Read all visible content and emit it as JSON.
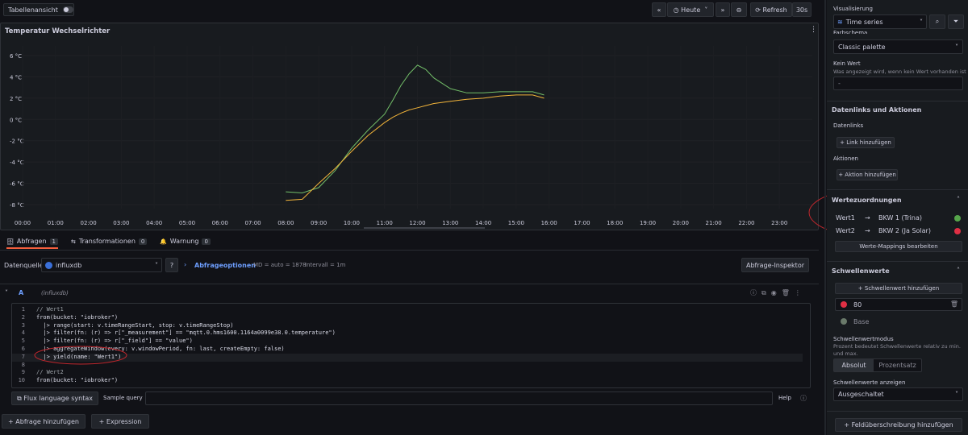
{
  "toolbar": {
    "table_view": "Tabellenansicht",
    "time_range": "Heute",
    "refresh": "Refresh",
    "refresh_interval": "30s"
  },
  "chart_data": {
    "type": "line",
    "title": "Temperatur Wechselrichter",
    "x": [
      8,
      8.5,
      9,
      9.5,
      10,
      10.5,
      11,
      11.25,
      11.5,
      11.75,
      12,
      12.25,
      12.5,
      13,
      13.5,
      14,
      14.5,
      15,
      15.5,
      15.85
    ],
    "series": [
      {
        "color": "#73bf69",
        "values": [
          -6.8,
          -6.9,
          -6.4,
          -4.8,
          -2.7,
          -1.0,
          0.5,
          1.8,
          3.2,
          4.3,
          5.1,
          4.7,
          3.9,
          2.9,
          2.5,
          2.5,
          2.6,
          2.6,
          2.6,
          2.3
        ]
      },
      {
        "color": "#f2b43a",
        "values": [
          -7.6,
          -7.5,
          -6.0,
          -4.6,
          -3.0,
          -1.5,
          -0.3,
          0.2,
          0.6,
          0.9,
          1.1,
          1.3,
          1.5,
          1.7,
          1.9,
          2.0,
          2.2,
          2.3,
          2.3,
          2.0
        ]
      }
    ],
    "xlim": [
      0,
      24
    ],
    "xticks": [
      {
        "value": 0,
        "label": "00:00"
      },
      {
        "value": 1,
        "label": "01:00"
      },
      {
        "value": 2,
        "label": "02:00"
      },
      {
        "value": 3,
        "label": "03:00"
      },
      {
        "value": 4,
        "label": "04:00"
      },
      {
        "value": 5,
        "label": "05:00"
      },
      {
        "value": 6,
        "label": "06:00"
      },
      {
        "value": 7,
        "label": "07:00"
      },
      {
        "value": 8,
        "label": "08:00"
      },
      {
        "value": 9,
        "label": "09:00"
      },
      {
        "value": 10,
        "label": "10:00"
      },
      {
        "value": 11,
        "label": "11:00"
      },
      {
        "value": 12,
        "label": "12:00"
      },
      {
        "value": 13,
        "label": "13:00"
      },
      {
        "value": 14,
        "label": "14:00"
      },
      {
        "value": 15,
        "label": "15:00"
      },
      {
        "value": 16,
        "label": "16:00"
      },
      {
        "value": 17,
        "label": "17:00"
      },
      {
        "value": 18,
        "label": "18:00"
      },
      {
        "value": 19,
        "label": "19:00"
      },
      {
        "value": 20,
        "label": "20:00"
      },
      {
        "value": 21,
        "label": "21:00"
      },
      {
        "value": 22,
        "label": "22:00"
      },
      {
        "value": 23,
        "label": "23:00"
      }
    ],
    "ylim": [
      -8,
      6
    ],
    "yticks": [
      {
        "value": 6,
        "label": "6 °C"
      },
      {
        "value": 4,
        "label": "4 °C"
      },
      {
        "value": 2,
        "label": "2 °C"
      },
      {
        "value": 0,
        "label": "0 °C"
      },
      {
        "value": -2,
        "label": "-2 °C"
      },
      {
        "value": -4,
        "label": "-4 °C"
      },
      {
        "value": -6,
        "label": "-6 °C"
      },
      {
        "value": -8,
        "label": "-8 °C"
      }
    ],
    "grid": true
  },
  "query_tabs": [
    {
      "label": "Abfragen",
      "count": 1
    },
    {
      "label": "Transformationen",
      "count": 0
    },
    {
      "label": "Warnung",
      "count": 0
    }
  ],
  "datasource": {
    "label": "Datenquelle",
    "name": "influxdb",
    "options": "Abfrageoptionen",
    "md": "MD = auto = 1878",
    "interval": "Intervall = 1m",
    "inspector": "Abfrage-Inspektor"
  },
  "query": {
    "ref": "A",
    "source": "(influxdb)",
    "lines": [
      {
        "number": 1,
        "text": "// Wert1"
      },
      {
        "number": 2,
        "text": "from(bucket: \"iobroker\")"
      },
      {
        "number": 3,
        "text": "  |> range(start: v.timeRangeStart, stop: v.timeRangeStop)"
      },
      {
        "number": 4,
        "text": "  |> filter(fn: (r) => r[\"_measurement\"] == \"mqtt.0.hms1600.1164a0099e38.0.temperature\")"
      },
      {
        "number": 5,
        "text": "  |> filter(fn: (r) => r[\"_field\"] == \"value\")"
      },
      {
        "number": 6,
        "text": "  |> aggregateWindow(every: v.windowPeriod, fn: last, createEmpty: false)"
      },
      {
        "number": 7,
        "text": "  |> yield(name: \"Wert1\")"
      },
      {
        "number": 8
      },
      {
        "number": 9,
        "text": "// Wert2"
      },
      {
        "number": 10,
        "text": "from(bucket: \"iobroker\")"
      }
    ]
  },
  "editor_footer": {
    "syntax": "Flux language syntax",
    "sample": "Sample query",
    "help": "Help"
  },
  "actions": {
    "add_query": "Abfrage hinzufügen",
    "expression": "Expression"
  },
  "sidebar": {
    "visualization_label": "Visualisierung",
    "visualization": "Time series",
    "color_scheme_label": "Farbschema",
    "color_scheme": "Classic palette",
    "no_value_label": "Kein Wert",
    "no_value_description": "Was angezeigt wird, wenn kein Wert vorhanden ist",
    "no_value_placeholder": "-",
    "links_section": "Datenlinks und Aktionen",
    "links_label": "Datenlinks",
    "add_link": "Link hinzufügen",
    "actions_label": "Aktionen",
    "add_action": "Aktion hinzufügen",
    "mappings_section": "Wertezuordnungen",
    "mappings": [
      {
        "from": "Wert1",
        "to": "BKW 1 (Trina)",
        "color": "#56a64b"
      },
      {
        "from": "Wert2",
        "to": "BKW 2 (Ja Solar)",
        "color": "#e02f44"
      }
    ],
    "edit_mappings": "Werte-Mappings bearbeiten",
    "thresholds_section": "Schwellenwerte",
    "add_threshold": "Schwellenwert hinzufügen",
    "thresholds": [
      {
        "value": 80,
        "color": "#e02f44"
      },
      {
        "value": "Base",
        "color": "#6a7a6a"
      }
    ],
    "threshold_mode_label": "Schwellenwertmodus",
    "threshold_mode_description": "Prozent bedeutet Schwellenwerte relativ zu min. und max.",
    "threshold_modes": [
      "Absolut",
      "Prozentsatz"
    ],
    "show_thresholds_label": "Schwellenwerte anzeigen",
    "show_thresholds": "Ausgeschaltet",
    "add_override": "Feldüberschreibung hinzufügen"
  }
}
